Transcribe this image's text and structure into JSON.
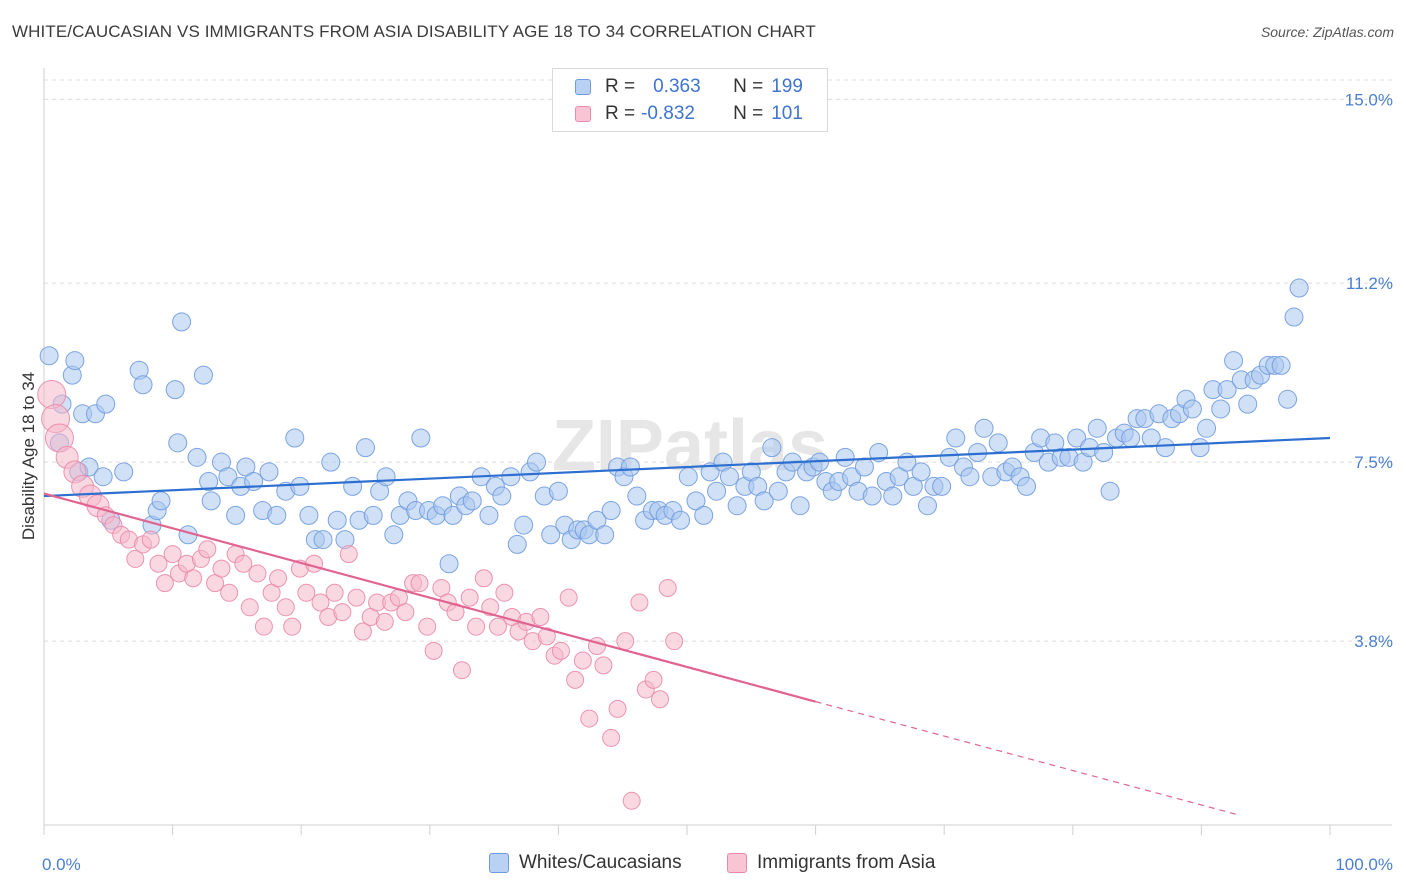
{
  "title": "WHITE/CAUCASIAN VS IMMIGRANTS FROM ASIA DISABILITY AGE 18 TO 34 CORRELATION CHART",
  "source": "Source: ZipAtlas.com",
  "watermark": "ZIPatlas",
  "legend": {
    "rows": [
      {
        "r_label": "R =",
        "r_value": "0.363",
        "n_label": "N =",
        "n_value": "199"
      },
      {
        "r_label": "R =",
        "r_value": "-0.832",
        "n_label": "N =",
        "n_value": "101"
      }
    ]
  },
  "bottom_legend": {
    "series_1": "Whites/Caucasians",
    "series_2": "Immigrants from Asia"
  },
  "colors": {
    "blue_fill": "#a9c6ef",
    "blue_stroke": "#6f9be0",
    "blue_line": "#2d6fd0",
    "pink_fill": "#f6b8cb",
    "pink_stroke": "#ea8aa9",
    "pink_line": "#e0648f",
    "grid": "#dcdcdc",
    "tick_text": "#4a7fd0"
  },
  "chart_data": {
    "type": "scatter",
    "title": "WHITE/CAUCASIAN VS IMMIGRANTS FROM ASIA DISABILITY AGE 18 TO 34 CORRELATION CHART",
    "xlabel": "",
    "ylabel": "Disability Age 18 to 34",
    "xlim": [
      0,
      100
    ],
    "ylim": [
      0,
      15.4
    ],
    "x_tick_labels": [
      "0.0%",
      "100.0%"
    ],
    "y_ticks": [
      3.8,
      7.5,
      11.2,
      15.0
    ],
    "y_tick_labels": [
      "3.8%",
      "7.5%",
      "11.2%",
      "15.0%"
    ],
    "grid": true,
    "series": [
      {
        "name": "Whites/Caucasians",
        "R": 0.363,
        "N": 199,
        "trend": {
          "x": [
            0,
            100
          ],
          "y": [
            6.8,
            8.0
          ],
          "dashed_to": null
        },
        "points": [
          [
            0.4,
            9.7
          ],
          [
            1.2,
            7.9
          ],
          [
            1.4,
            8.7
          ],
          [
            2.2,
            9.3
          ],
          [
            2.4,
            9.6
          ],
          [
            2.7,
            7.3
          ],
          [
            3.0,
            8.5
          ],
          [
            3.5,
            7.4
          ],
          [
            4.0,
            8.5
          ],
          [
            4.6,
            7.2
          ],
          [
            4.8,
            8.7
          ],
          [
            5.2,
            6.3
          ],
          [
            6.2,
            7.3
          ],
          [
            7.4,
            9.4
          ],
          [
            7.7,
            9.1
          ],
          [
            8.4,
            6.2
          ],
          [
            8.8,
            6.5
          ],
          [
            9.1,
            6.7
          ],
          [
            10.2,
            9.0
          ],
          [
            10.4,
            7.9
          ],
          [
            10.7,
            10.4
          ],
          [
            11.2,
            6.0
          ],
          [
            11.9,
            7.6
          ],
          [
            12.4,
            9.3
          ],
          [
            12.8,
            7.1
          ],
          [
            13.0,
            6.7
          ],
          [
            13.8,
            7.5
          ],
          [
            14.3,
            7.2
          ],
          [
            14.9,
            6.4
          ],
          [
            15.3,
            7.0
          ],
          [
            15.7,
            7.4
          ],
          [
            16.3,
            7.1
          ],
          [
            17.0,
            6.5
          ],
          [
            17.5,
            7.3
          ],
          [
            18.1,
            6.4
          ],
          [
            18.8,
            6.9
          ],
          [
            19.5,
            8.0
          ],
          [
            19.9,
            7.0
          ],
          [
            20.6,
            6.4
          ],
          [
            21.1,
            5.9
          ],
          [
            21.7,
            5.9
          ],
          [
            22.3,
            7.5
          ],
          [
            22.8,
            6.3
          ],
          [
            23.4,
            5.9
          ],
          [
            24.0,
            7.0
          ],
          [
            24.5,
            6.3
          ],
          [
            25.0,
            7.8
          ],
          [
            25.6,
            6.4
          ],
          [
            26.1,
            6.9
          ],
          [
            26.6,
            7.2
          ],
          [
            27.2,
            6.0
          ],
          [
            27.7,
            6.4
          ],
          [
            28.3,
            6.7
          ],
          [
            28.9,
            6.5
          ],
          [
            29.3,
            8.0
          ],
          [
            29.9,
            6.5
          ],
          [
            30.5,
            6.4
          ],
          [
            31.0,
            6.6
          ],
          [
            31.5,
            5.4
          ],
          [
            31.8,
            6.4
          ],
          [
            32.3,
            6.8
          ],
          [
            32.8,
            6.6
          ],
          [
            33.3,
            6.7
          ],
          [
            34.0,
            7.2
          ],
          [
            34.6,
            6.4
          ],
          [
            35.1,
            7.0
          ],
          [
            35.6,
            6.8
          ],
          [
            36.3,
            7.2
          ],
          [
            36.8,
            5.8
          ],
          [
            37.3,
            6.2
          ],
          [
            37.8,
            7.3
          ],
          [
            38.3,
            7.5
          ],
          [
            38.9,
            6.8
          ],
          [
            39.4,
            6.0
          ],
          [
            40.0,
            6.9
          ],
          [
            40.5,
            6.2
          ],
          [
            41.0,
            5.9
          ],
          [
            41.5,
            6.1
          ],
          [
            42.0,
            6.1
          ],
          [
            42.4,
            6.0
          ],
          [
            43.0,
            6.3
          ],
          [
            43.6,
            6.0
          ],
          [
            44.1,
            6.5
          ],
          [
            44.6,
            7.4
          ],
          [
            45.1,
            7.2
          ],
          [
            45.6,
            7.4
          ],
          [
            46.1,
            6.8
          ],
          [
            46.7,
            6.3
          ],
          [
            47.3,
            6.5
          ],
          [
            47.8,
            6.5
          ],
          [
            48.3,
            6.4
          ],
          [
            48.9,
            6.5
          ],
          [
            49.5,
            6.3
          ],
          [
            50.1,
            7.2
          ],
          [
            50.7,
            6.7
          ],
          [
            51.3,
            6.4
          ],
          [
            51.8,
            7.3
          ],
          [
            52.3,
            6.9
          ],
          [
            52.8,
            7.5
          ],
          [
            53.3,
            7.2
          ],
          [
            53.9,
            6.6
          ],
          [
            54.5,
            7.0
          ],
          [
            55.0,
            7.3
          ],
          [
            55.5,
            7.0
          ],
          [
            56.0,
            6.7
          ],
          [
            56.6,
            7.8
          ],
          [
            57.1,
            6.9
          ],
          [
            57.7,
            7.3
          ],
          [
            58.2,
            7.5
          ],
          [
            58.8,
            6.6
          ],
          [
            59.3,
            7.3
          ],
          [
            59.8,
            7.4
          ],
          [
            60.3,
            7.5
          ],
          [
            60.8,
            7.1
          ],
          [
            61.3,
            6.9
          ],
          [
            61.8,
            7.1
          ],
          [
            62.3,
            7.6
          ],
          [
            62.8,
            7.2
          ],
          [
            63.3,
            6.9
          ],
          [
            63.8,
            7.4
          ],
          [
            64.4,
            6.8
          ],
          [
            64.9,
            7.7
          ],
          [
            65.5,
            7.1
          ],
          [
            66.0,
            6.8
          ],
          [
            66.5,
            7.2
          ],
          [
            67.1,
            7.5
          ],
          [
            67.6,
            7.0
          ],
          [
            68.2,
            7.3
          ],
          [
            68.7,
            6.6
          ],
          [
            69.2,
            7.0
          ],
          [
            69.8,
            7.0
          ],
          [
            70.4,
            7.6
          ],
          [
            70.9,
            8.0
          ],
          [
            71.5,
            7.4
          ],
          [
            72.0,
            7.2
          ],
          [
            72.6,
            7.7
          ],
          [
            73.1,
            8.2
          ],
          [
            73.7,
            7.2
          ],
          [
            74.2,
            7.9
          ],
          [
            74.8,
            7.3
          ],
          [
            75.3,
            7.4
          ],
          [
            75.9,
            7.2
          ],
          [
            76.4,
            7.0
          ],
          [
            77.0,
            7.7
          ],
          [
            77.5,
            8.0
          ],
          [
            78.1,
            7.5
          ],
          [
            78.6,
            7.9
          ],
          [
            79.1,
            7.6
          ],
          [
            79.7,
            7.6
          ],
          [
            80.3,
            8.0
          ],
          [
            80.8,
            7.5
          ],
          [
            81.3,
            7.8
          ],
          [
            81.9,
            8.2
          ],
          [
            82.4,
            7.7
          ],
          [
            82.9,
            6.9
          ],
          [
            83.4,
            8.0
          ],
          [
            84.0,
            8.1
          ],
          [
            84.5,
            8.0
          ],
          [
            85.0,
            8.4
          ],
          [
            85.6,
            8.4
          ],
          [
            86.1,
            8.0
          ],
          [
            86.7,
            8.5
          ],
          [
            87.2,
            7.8
          ],
          [
            87.7,
            8.4
          ],
          [
            88.3,
            8.5
          ],
          [
            88.8,
            8.8
          ],
          [
            89.3,
            8.6
          ],
          [
            89.9,
            7.8
          ],
          [
            90.4,
            8.2
          ],
          [
            90.9,
            9.0
          ],
          [
            91.5,
            8.6
          ],
          [
            92.0,
            9.0
          ],
          [
            92.5,
            9.6
          ],
          [
            93.1,
            9.2
          ],
          [
            93.6,
            8.7
          ],
          [
            94.1,
            9.2
          ],
          [
            94.6,
            9.3
          ],
          [
            95.2,
            9.5
          ],
          [
            95.7,
            9.5
          ],
          [
            96.2,
            9.5
          ],
          [
            96.7,
            8.8
          ],
          [
            97.2,
            10.5
          ],
          [
            97.6,
            11.1
          ]
        ]
      },
      {
        "name": "Immigrants from Asia",
        "R": -0.832,
        "N": 101,
        "trend": {
          "x": [
            0,
            60
          ],
          "y": [
            6.85,
            2.55
          ],
          "dashed_to": [
            93,
            0.2
          ]
        },
        "points": [
          [
            0.6,
            8.9
          ],
          [
            0.9,
            8.4
          ],
          [
            1.2,
            8.0
          ],
          [
            1.8,
            7.6
          ],
          [
            2.4,
            7.3
          ],
          [
            3.0,
            7.0
          ],
          [
            3.6,
            6.8
          ],
          [
            4.2,
            6.6
          ],
          [
            4.8,
            6.4
          ],
          [
            5.4,
            6.2
          ],
          [
            6.0,
            6.0
          ],
          [
            6.6,
            5.9
          ],
          [
            7.1,
            5.5
          ],
          [
            7.7,
            5.8
          ],
          [
            8.3,
            5.9
          ],
          [
            8.9,
            5.4
          ],
          [
            9.4,
            5.0
          ],
          [
            10.0,
            5.6
          ],
          [
            10.5,
            5.2
          ],
          [
            11.1,
            5.4
          ],
          [
            11.6,
            5.1
          ],
          [
            12.2,
            5.5
          ],
          [
            12.7,
            5.7
          ],
          [
            13.3,
            5.0
          ],
          [
            13.8,
            5.3
          ],
          [
            14.4,
            4.8
          ],
          [
            14.9,
            5.6
          ],
          [
            15.5,
            5.4
          ],
          [
            16.0,
            4.5
          ],
          [
            16.6,
            5.2
          ],
          [
            17.1,
            4.1
          ],
          [
            17.7,
            4.8
          ],
          [
            18.2,
            5.1
          ],
          [
            18.8,
            4.5
          ],
          [
            19.3,
            4.1
          ],
          [
            19.9,
            5.3
          ],
          [
            20.4,
            4.8
          ],
          [
            21.0,
            5.4
          ],
          [
            21.5,
            4.6
          ],
          [
            22.1,
            4.3
          ],
          [
            22.6,
            4.8
          ],
          [
            23.2,
            4.4
          ],
          [
            23.7,
            5.6
          ],
          [
            24.3,
            4.7
          ],
          [
            24.8,
            4.0
          ],
          [
            25.4,
            4.3
          ],
          [
            25.9,
            4.6
          ],
          [
            26.5,
            4.2
          ],
          [
            27.0,
            4.6
          ],
          [
            27.6,
            4.7
          ],
          [
            28.1,
            4.4
          ],
          [
            28.7,
            5.0
          ],
          [
            29.2,
            5.0
          ],
          [
            29.8,
            4.1
          ],
          [
            30.3,
            3.6
          ],
          [
            30.9,
            4.9
          ],
          [
            31.4,
            4.6
          ],
          [
            32.0,
            4.4
          ],
          [
            32.5,
            3.2
          ],
          [
            33.1,
            4.7
          ],
          [
            33.6,
            4.1
          ],
          [
            34.2,
            5.1
          ],
          [
            34.7,
            4.5
          ],
          [
            35.3,
            4.1
          ],
          [
            35.8,
            4.8
          ],
          [
            36.4,
            4.3
          ],
          [
            36.9,
            4.0
          ],
          [
            37.5,
            4.2
          ],
          [
            38.0,
            3.8
          ],
          [
            38.6,
            4.3
          ],
          [
            39.1,
            3.9
          ],
          [
            39.7,
            3.5
          ],
          [
            40.2,
            3.6
          ],
          [
            40.8,
            4.7
          ],
          [
            41.3,
            3.0
          ],
          [
            41.9,
            3.4
          ],
          [
            42.4,
            2.2
          ],
          [
            43.0,
            3.7
          ],
          [
            43.5,
            3.3
          ],
          [
            44.1,
            1.8
          ],
          [
            44.6,
            2.4
          ],
          [
            45.2,
            3.8
          ],
          [
            45.7,
            0.5
          ],
          [
            46.3,
            4.6
          ],
          [
            46.8,
            2.8
          ],
          [
            47.4,
            3.0
          ],
          [
            47.9,
            2.6
          ],
          [
            48.5,
            4.9
          ],
          [
            49.0,
            3.8
          ]
        ]
      }
    ]
  }
}
